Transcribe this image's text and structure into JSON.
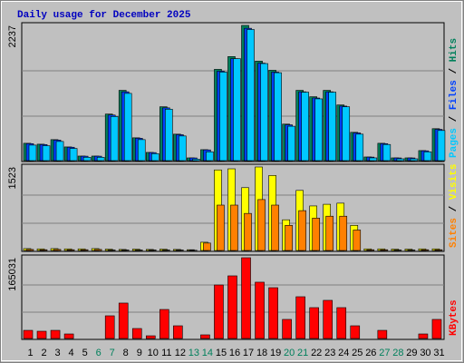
{
  "chart_data": [
    {
      "type": "bar",
      "title": "Daily usage for December 2025",
      "title_color": "#0000c0",
      "ylim": [
        0,
        2237
      ],
      "yticks": [
        2237
      ],
      "legend_separator": " / ",
      "series": [
        {
          "name": "Pages",
          "color": "#00c8ff",
          "values": [
            270,
            260,
            330,
            215,
            70,
            70,
            740,
            1120,
            360,
            130,
            860,
            420,
            40,
            160,
            1470,
            1690,
            2170,
            1610,
            1460,
            580,
            1140,
            1030,
            1140,
            900,
            450,
            60,
            280,
            45,
            45,
            160,
            510
          ]
        },
        {
          "name": "Files",
          "color": "#0040ff",
          "values": [
            294,
            279,
            352,
            235,
            88,
            88,
            764,
            1146,
            382,
            147,
            882,
            441,
            59,
            191,
            1485,
            1690,
            2190,
            1617,
            1470,
            603,
            1146,
            1044,
            1146,
            911,
            470,
            73,
            294,
            59,
            59,
            176,
            529
          ]
        },
        {
          "name": "Hits",
          "color": "#00805c",
          "values": [
            300,
            285,
            360,
            240,
            90,
            90,
            780,
            1170,
            390,
            150,
            900,
            450,
            60,
            195,
            1515,
            1725,
            2237,
            1650,
            1500,
            615,
            1170,
            1065,
            1170,
            930,
            480,
            75,
            300,
            60,
            60,
            180,
            540
          ]
        }
      ]
    },
    {
      "type": "bar",
      "ylim": [
        0,
        1523
      ],
      "yticks": [
        1523
      ],
      "legend_separator": " / ",
      "series": [
        {
          "name": "Sites",
          "color": "#ff8000",
          "values": [
            35,
            30,
            35,
            30,
            30,
            35,
            25,
            25,
            25,
            25,
            25,
            25,
            20,
            150,
            835,
            835,
            685,
            935,
            835,
            470,
            735,
            600,
            635,
            635,
            385,
            30,
            30,
            25,
            25,
            30,
            30
          ]
        },
        {
          "name": "Visits",
          "color": "#ffff00",
          "values": [
            50,
            45,
            50,
            45,
            45,
            50,
            40,
            35,
            40,
            35,
            40,
            35,
            30,
            165,
            1470,
            1490,
            1150,
            1523,
            1370,
            570,
            1100,
            820,
            850,
            870,
            470,
            45,
            45,
            40,
            40,
            45,
            45
          ]
        }
      ]
    },
    {
      "type": "bar",
      "ylim": [
        0,
        165031
      ],
      "yticks": [
        165031
      ],
      "categories": [
        "1",
        "2",
        "3",
        "4",
        "5",
        "6",
        "7",
        "8",
        "9",
        "10",
        "11",
        "12",
        "13",
        "14",
        "15",
        "16",
        "17",
        "18",
        "19",
        "20",
        "21",
        "22",
        "23",
        "24",
        "25",
        "26",
        "27",
        "28",
        "29",
        "30",
        "31"
      ],
      "category_colors": [
        "#000000",
        "#000000",
        "#000000",
        "#000000",
        "#000000",
        "#00805c",
        "#00805c",
        "#000000",
        "#000000",
        "#000000",
        "#000000",
        "#000000",
        "#00805c",
        "#00805c",
        "#000000",
        "#000000",
        "#000000",
        "#000000",
        "#000000",
        "#00805c",
        "#00805c",
        "#000000",
        "#000000",
        "#000000",
        "#000000",
        "#000000",
        "#00805c",
        "#00805c",
        "#000000",
        "#000000",
        "#000000"
      ],
      "series": [
        {
          "name": "KBytes",
          "color": "#ff0000",
          "values": [
            18300,
            16500,
            18300,
            11000,
            1800,
            1800,
            47700,
            73400,
            22000,
            7300,
            60500,
            27500,
            1800,
            9200,
            110000,
            128400,
            165031,
            115600,
            104500,
            40400,
            86200,
            64200,
            78900,
            64200,
            27500,
            1800,
            18300,
            1800,
            1800,
            11000,
            40400
          ]
        }
      ]
    }
  ]
}
